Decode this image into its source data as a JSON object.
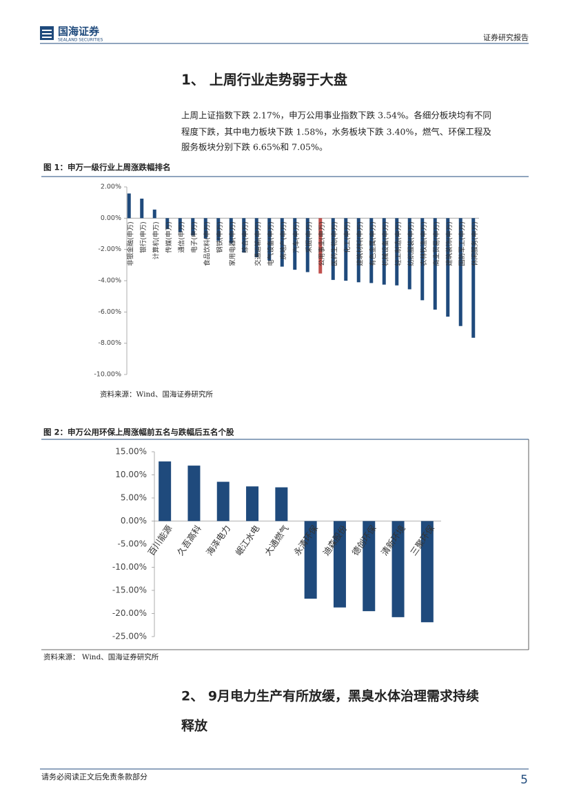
{
  "header": {
    "logo_cn": "国海证券",
    "logo_en": "SEALAND SECURITIES",
    "report_type": "证券研究报告"
  },
  "section1": {
    "heading": "1、 上周行业走势弱于大盘",
    "paragraph": [
      "上周上证指数下跌 2.17%，申万公用事业指数下跌 3.54%。各细分板块均有不同",
      "程度下跌，其中电力板块下跌 1.58%，水务板块下跌 3.40%，燃气、环保工程及",
      "服务板块分别下跌 6.65%和 7.05%。"
    ]
  },
  "chart_data": [
    {
      "type": "bar",
      "title": "图 1：申万一级行业上周涨跌幅排名",
      "source": "资料来源：Wind、国海证券研究所",
      "categories": [
        "非银金融(申万)",
        "银行(申万)",
        "计算机(申万)",
        "传媒(申万)",
        "通信(申万)",
        "电子(申万)",
        "食品饮料(申万)",
        "钢铁(申万)",
        "家用电器(申万)",
        "综合(申万)",
        "交通运输(申万)",
        "电气设备(申万)",
        "房地产(申万)",
        "汽车(申万)",
        "采掘(申万)",
        "公用事业(申万)",
        "医药生物(申万)",
        "化工(申万)",
        "建筑材料(申万)",
        "有色金属(申万)",
        "机械设备(申万)",
        "轻工制造(申万)",
        "纺织服装(申万)",
        "农林牧渔(申万)",
        "商业贸易(申万)",
        "建筑装饰(申万)",
        "国防军工(申万)",
        "休闲服务(申万)"
      ],
      "values": [
        1.58,
        1.25,
        0.55,
        -0.7,
        -0.9,
        -1.1,
        -1.3,
        -1.45,
        -1.6,
        -2.2,
        -2.5,
        -2.7,
        -3.1,
        -3.3,
        -3.45,
        -3.54,
        -3.95,
        -4.0,
        -4.1,
        -4.15,
        -4.25,
        -4.3,
        -4.55,
        -5.25,
        -5.85,
        -6.3,
        -6.9,
        -7.65
      ],
      "colors": [
        "#1f4a7c",
        "#1f4a7c",
        "#1f4a7c",
        "#1f4a7c",
        "#1f4a7c",
        "#1f4a7c",
        "#1f4a7c",
        "#1f4a7c",
        "#1f4a7c",
        "#1f4a7c",
        "#1f4a7c",
        "#1f4a7c",
        "#1f4a7c",
        "#1f4a7c",
        "#1f4a7c",
        "#c0504d",
        "#1f4a7c",
        "#1f4a7c",
        "#1f4a7c",
        "#1f4a7c",
        "#1f4a7c",
        "#1f4a7c",
        "#1f4a7c",
        "#1f4a7c",
        "#1f4a7c",
        "#1f4a7c",
        "#1f4a7c",
        "#1f4a7c"
      ],
      "ylim": [
        -10,
        2
      ],
      "yticks": [
        {
          "value": 2,
          "label": "2.00%"
        },
        {
          "value": 0,
          "label": "0.00%"
        },
        {
          "value": -2,
          "label": "-2.00%"
        },
        {
          "value": -4,
          "label": "-4.00%"
        },
        {
          "value": -6,
          "label": "-6.00%"
        },
        {
          "value": -8,
          "label": "-8.00%"
        },
        {
          "value": -10,
          "label": "-10.00%"
        }
      ]
    },
    {
      "type": "bar",
      "title": "图 2：申万公用环保上周涨幅前五名与跌幅后五名个股",
      "source": "资料来源：  Wind、国海证券研究所",
      "categories": [
        "百川能源",
        "久吾高科",
        "海泽电力",
        "岷江水电",
        "大通燃气",
        "永清环保",
        "迪森股份",
        "德创环保",
        "清新环境",
        "三聚环保"
      ],
      "values": [
        12.9,
        12.0,
        8.5,
        7.5,
        7.3,
        -16.8,
        -18.7,
        -19.5,
        -20.8,
        -21.9
      ],
      "color": "#1f4a7c",
      "ylim": [
        -25,
        15
      ],
      "yticks": [
        {
          "value": 15,
          "label": "15.00%"
        },
        {
          "value": 10,
          "label": "10.00%"
        },
        {
          "value": 5,
          "label": "5.00%"
        },
        {
          "value": 0,
          "label": "0.00%"
        },
        {
          "value": -5,
          "label": "-5.00%"
        },
        {
          "value": -10,
          "label": "-10.00%"
        },
        {
          "value": -15,
          "label": "-15.00%"
        },
        {
          "value": -20,
          "label": "-20.00%"
        },
        {
          "value": -25,
          "label": "-25.00%"
        }
      ]
    }
  ],
  "section2": {
    "heading": [
      "2、 9月电力生产有所放缓，黑臭水体治理需求持续",
      "释放"
    ]
  },
  "footer": {
    "disclaimer": "请务必阅读正文后免责条款部分",
    "page": "5"
  }
}
